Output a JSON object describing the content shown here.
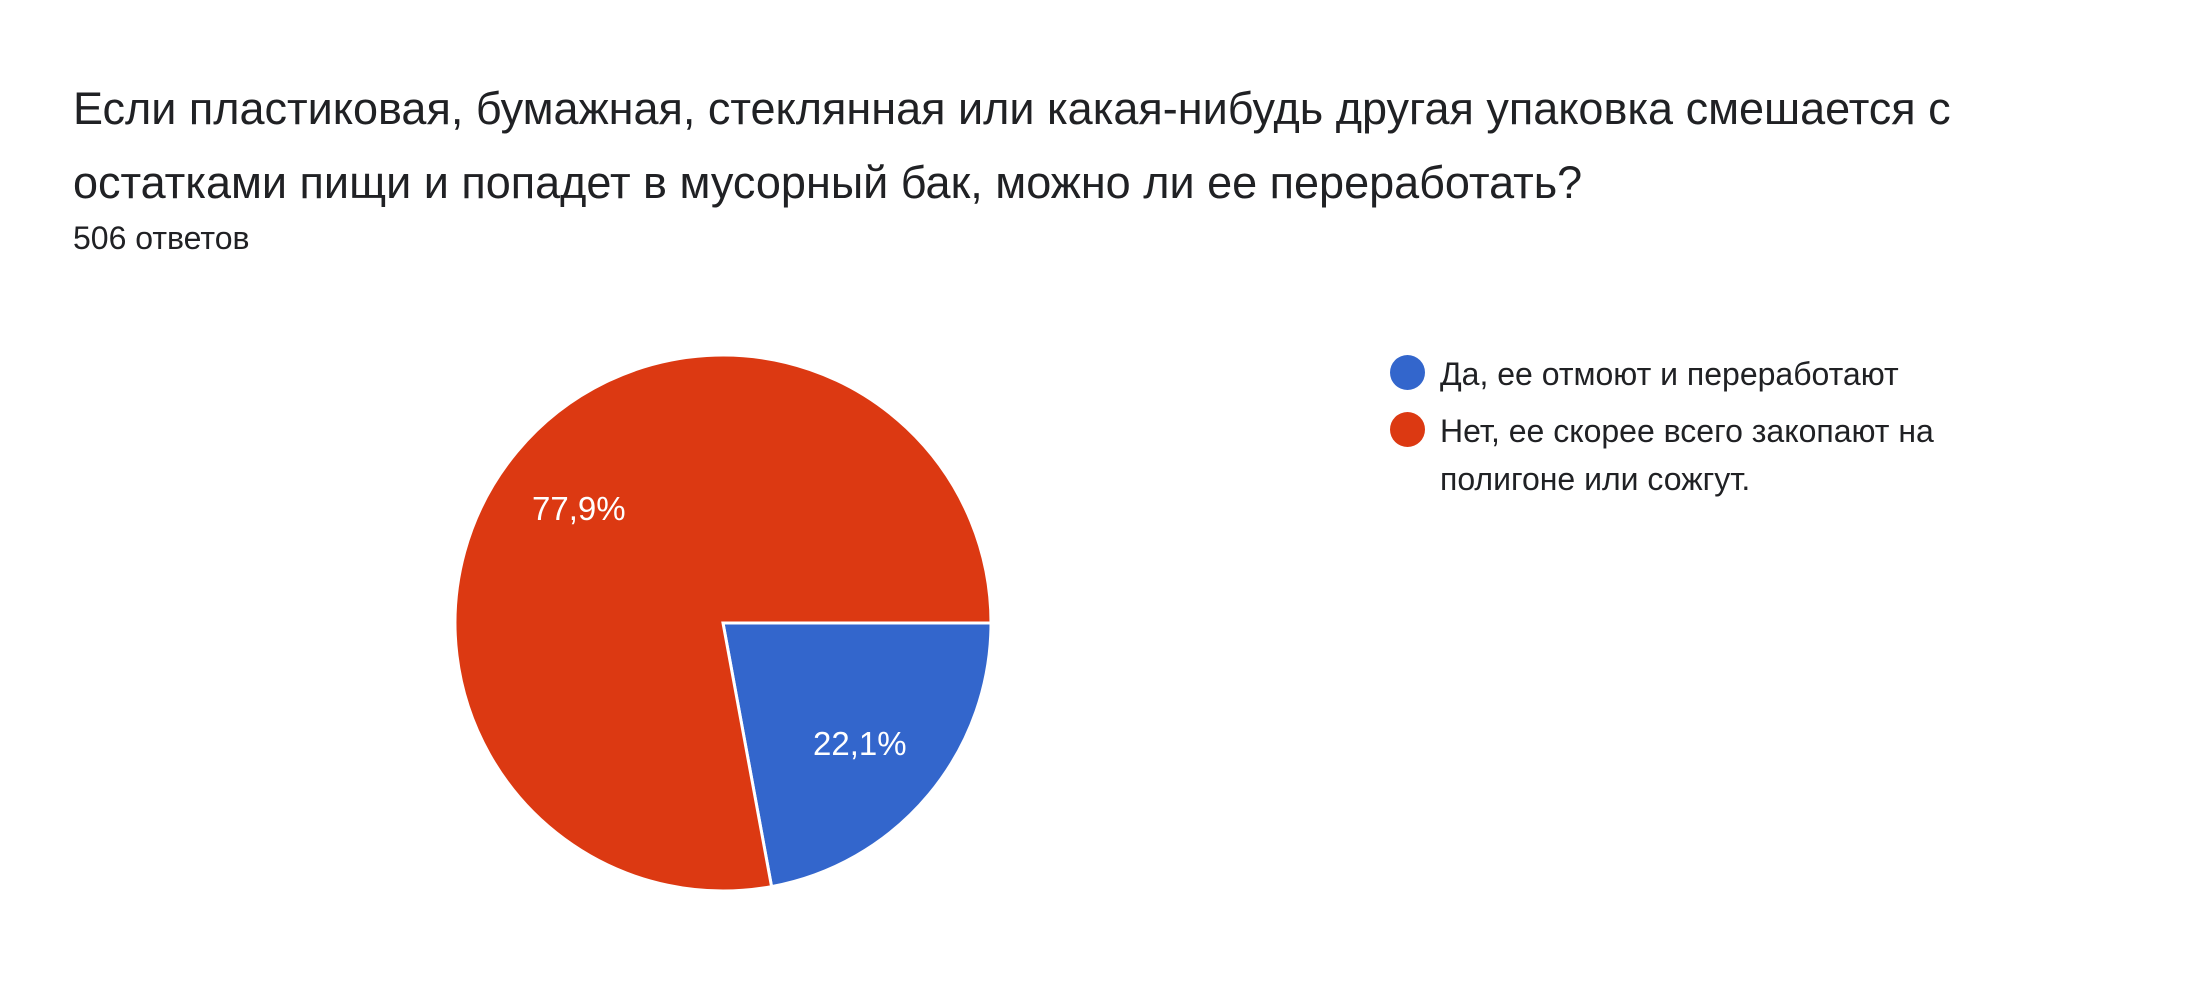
{
  "question": {
    "title": "Если пластиковая, бумажная, стеклянная или какая-нибудь другая упаковка смешается с остатками пищи и попадет в мусорный бак, можно ли ее переработать?",
    "response_count": "506 ответов"
  },
  "colors": {
    "blue": "#3366cc",
    "red": "#dc3912"
  },
  "legend": [
    {
      "label": "Да, ее отмоют и переработают",
      "color": "#3366cc"
    },
    {
      "label": "Нет, ее скорее всего закопают на полигоне или сожгут.",
      "color": "#dc3912"
    }
  ],
  "slice_labels": [
    "22,1%",
    "77,9%"
  ],
  "chart_data": {
    "type": "pie",
    "title": "Если пластиковая, бумажная, стеклянная или какая-нибудь другая упаковка смешается с остатками пищи и попадет в мусорный бак, можно ли ее переработать?",
    "subtitle": "506 ответов",
    "categories": [
      "Да, ее отмоют и переработают",
      "Нет, ее скорее всего закопают на полигоне или сожгут."
    ],
    "values": [
      22.1,
      77.9
    ],
    "value_labels": [
      "22,1%",
      "77,9%"
    ],
    "colors": [
      "#3366cc",
      "#dc3912"
    ],
    "legend_position": "right",
    "start_angle": "3 o'clock, clockwise",
    "total_responses": 506
  }
}
